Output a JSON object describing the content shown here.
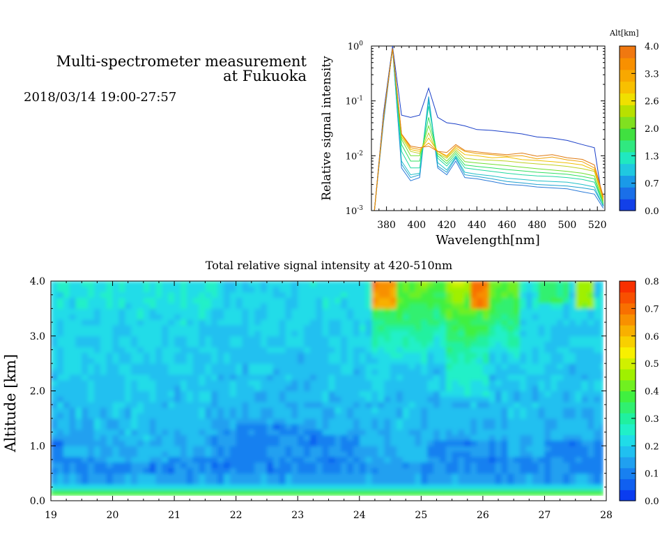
{
  "header": {
    "title_line1": "Multi-spectrometer measurement",
    "title_line2": "at Fukuoka",
    "date_range": "2018/03/14 19:00-27:57"
  },
  "chart_data": [
    {
      "type": "line",
      "title": "",
      "xlabel": "Wavelength[nm]",
      "ylabel": "Relative signal intensity",
      "yscale": "log",
      "xlim": [
        370,
        525
      ],
      "ylim": [
        0.001,
        1
      ],
      "x_ticks": [
        380,
        400,
        420,
        440,
        460,
        480,
        500,
        520
      ],
      "y_ticks": [
        {
          "value": 1,
          "base": "10",
          "exp": "0"
        },
        {
          "value": 0.1,
          "base": "10",
          "exp": "-1"
        },
        {
          "value": 0.01,
          "base": "10",
          "exp": "-2"
        },
        {
          "value": 0.001,
          "base": "10",
          "exp": "-3"
        }
      ],
      "grid": false,
      "x": [
        372,
        378,
        384,
        390,
        396,
        402,
        408,
        414,
        420,
        426,
        432,
        440,
        450,
        460,
        470,
        480,
        490,
        500,
        510,
        518,
        524
      ],
      "series": [
        {
          "altitude_km": 0.2,
          "color": "#1a3fc8",
          "values": [
            0.001,
            0.06,
            1.0,
            0.055,
            0.05,
            0.055,
            0.17,
            0.05,
            0.04,
            0.038,
            0.035,
            0.03,
            0.029,
            0.027,
            0.025,
            0.022,
            0.021,
            0.019,
            0.016,
            0.014,
            0.0012
          ]
        },
        {
          "altitude_km": 0.5,
          "color": "#2a7ad8",
          "values": [
            0.001,
            0.04,
            0.9,
            0.006,
            0.0035,
            0.004,
            0.11,
            0.006,
            0.0045,
            0.008,
            0.004,
            0.0038,
            0.0034,
            0.003,
            0.0029,
            0.0027,
            0.0026,
            0.0025,
            0.0022,
            0.002,
            0.0011
          ]
        },
        {
          "altitude_km": 0.8,
          "color": "#1ea0d0",
          "values": [
            0.001,
            0.045,
            0.9,
            0.007,
            0.004,
            0.0045,
            0.12,
            0.0065,
            0.005,
            0.009,
            0.0045,
            0.0042,
            0.0038,
            0.0034,
            0.0032,
            0.003,
            0.0029,
            0.0028,
            0.0026,
            0.0024,
            0.0012
          ]
        },
        {
          "altitude_km": 1.0,
          "color": "#20c0c8",
          "values": [
            0.001,
            0.045,
            0.9,
            0.008,
            0.0045,
            0.0048,
            0.1,
            0.0075,
            0.0055,
            0.0095,
            0.005,
            0.0046,
            0.0043,
            0.0039,
            0.0037,
            0.0035,
            0.0034,
            0.0033,
            0.003,
            0.0027,
            0.0012
          ]
        },
        {
          "altitude_km": 1.3,
          "color": "#20d8a0",
          "values": [
            0.001,
            0.05,
            0.9,
            0.012,
            0.006,
            0.006,
            0.08,
            0.009,
            0.0065,
            0.01,
            0.006,
            0.0056,
            0.0052,
            0.0048,
            0.0045,
            0.0043,
            0.0042,
            0.004,
            0.0037,
            0.0033,
            0.0013
          ]
        },
        {
          "altitude_km": 1.7,
          "color": "#30e060",
          "values": [
            0.001,
            0.05,
            0.9,
            0.016,
            0.008,
            0.008,
            0.05,
            0.01,
            0.0072,
            0.011,
            0.0068,
            0.0064,
            0.006,
            0.0056,
            0.0053,
            0.005,
            0.0048,
            0.0046,
            0.0042,
            0.0038,
            0.0013
          ]
        },
        {
          "altitude_km": 2.0,
          "color": "#70e030",
          "values": [
            0.001,
            0.05,
            0.9,
            0.02,
            0.01,
            0.01,
            0.035,
            0.011,
            0.008,
            0.012,
            0.0078,
            0.0074,
            0.007,
            0.0066,
            0.0062,
            0.0058,
            0.0055,
            0.0052,
            0.0048,
            0.0043,
            0.0014
          ]
        },
        {
          "altitude_km": 2.5,
          "color": "#c0d020",
          "values": [
            0.001,
            0.05,
            0.9,
            0.022,
            0.012,
            0.011,
            0.026,
            0.011,
            0.009,
            0.013,
            0.009,
            0.0085,
            0.0083,
            0.008,
            0.0075,
            0.0071,
            0.0068,
            0.0064,
            0.0058,
            0.0052,
            0.0015
          ]
        },
        {
          "altitude_km": 3.0,
          "color": "#f0c000",
          "values": [
            0.001,
            0.05,
            0.9,
            0.024,
            0.013,
            0.012,
            0.021,
            0.012,
            0.0095,
            0.014,
            0.0105,
            0.01,
            0.0092,
            0.0095,
            0.0085,
            0.0082,
            0.0078,
            0.0074,
            0.0068,
            0.0055,
            0.0016
          ]
        },
        {
          "altitude_km": 3.5,
          "color": "#f0a000",
          "values": [
            0.001,
            0.05,
            0.9,
            0.025,
            0.014,
            0.013,
            0.017,
            0.012,
            0.01,
            0.015,
            0.012,
            0.011,
            0.0105,
            0.0098,
            0.01,
            0.0088,
            0.0095,
            0.0084,
            0.0078,
            0.006,
            0.0017
          ]
        },
        {
          "altitude_km": 4.0,
          "color": "#e07a10",
          "values": [
            0.001,
            0.05,
            0.9,
            0.025,
            0.015,
            0.014,
            0.015,
            0.012,
            0.0115,
            0.016,
            0.0125,
            0.0118,
            0.011,
            0.0105,
            0.0112,
            0.0098,
            0.0105,
            0.0092,
            0.0086,
            0.0068,
            0.0018
          ]
        }
      ],
      "colorbar": {
        "label": "Alt[km]",
        "range": [
          0,
          4
        ],
        "tick_labels": [
          "4.0",
          "3.3",
          "2.6",
          "2.0",
          "1.3",
          "0.7",
          "0.0"
        ],
        "colors": [
          "#1240e8",
          "#1a6fe8",
          "#1a9ae8",
          "#20c8e0",
          "#20e8c0",
          "#30e880",
          "#40e040",
          "#80e020",
          "#b8e000",
          "#f0e000",
          "#f8c000",
          "#f8a800",
          "#f89000",
          "#f07810"
        ]
      }
    },
    {
      "type": "heatmap",
      "title": "Total relative signal intensity at 420-510nm",
      "xlabel": "",
      "ylabel": "Altitude [km]",
      "xlim": [
        19,
        28
      ],
      "ylim": [
        0,
        4
      ],
      "x_ticks": [
        "19",
        "20",
        "21",
        "22",
        "23",
        "24",
        "25",
        "26",
        "27",
        "28"
      ],
      "y_ticks": [
        "0.0",
        "1.0",
        "2.0",
        "3.0",
        "4.0"
      ],
      "data_end_hour": 27.95,
      "colorbar": {
        "range": [
          0,
          0.8
        ],
        "tick_labels": [
          "0.8",
          "0.7",
          "0.6",
          "0.5",
          "0.4",
          "0.3",
          "0.2",
          "0.1",
          "0.0"
        ],
        "colors": [
          "#0a3cf0",
          "#1060f0",
          "#1880f0",
          "#20a0f0",
          "#20c0f0",
          "#20dce8",
          "#20f0c8",
          "#20f0a0",
          "#30f070",
          "#40f040",
          "#70f020",
          "#a0f000",
          "#d0f000",
          "#f8f000",
          "#f8d000",
          "#f8b000",
          "#f89000",
          "#f87000",
          "#f85000",
          "#f83000"
        ]
      },
      "grid": false
    }
  ]
}
